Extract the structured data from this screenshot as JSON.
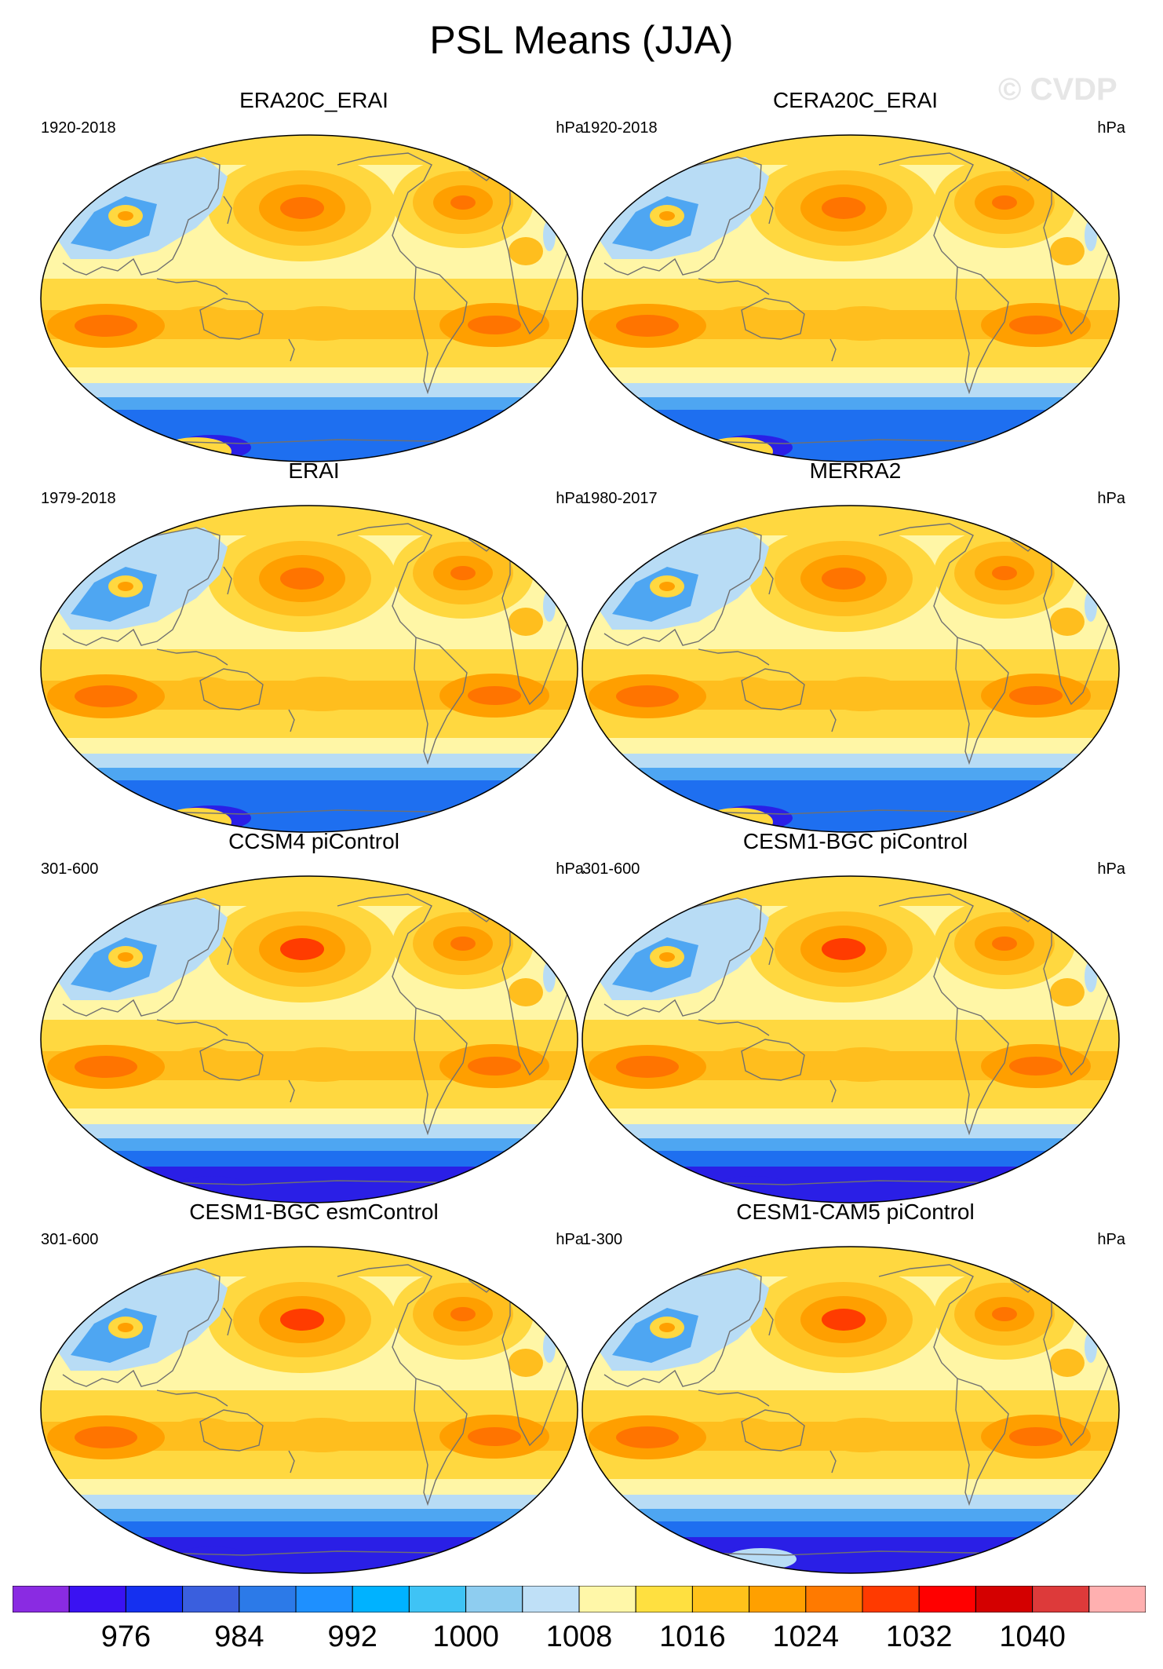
{
  "figure": {
    "title": "PSL Means (JJA)",
    "watermark": "© CVDP"
  },
  "panels": [
    {
      "title": "ERA20C_ERAI",
      "period": "1920-2018",
      "units": "hPa",
      "variant": 0
    },
    {
      "title": "CERA20C_ERAI",
      "period": "1920-2018",
      "units": "hPa",
      "variant": 0
    },
    {
      "title": "ERAI",
      "period": "1979-2018",
      "units": "hPa",
      "variant": 1
    },
    {
      "title": "MERRA2",
      "period": "1980-2017",
      "units": "hPa",
      "variant": 1
    },
    {
      "title": "CCSM4 piControl",
      "period": "301-600",
      "units": "hPa",
      "variant": 2
    },
    {
      "title": "CESM1-BGC piControl",
      "period": "301-600",
      "units": "hPa",
      "variant": 2
    },
    {
      "title": "CESM1-BGC esmControl",
      "period": "301-600",
      "units": "hPa",
      "variant": 2
    },
    {
      "title": "CESM1-CAM5 piControl",
      "period": "1-300",
      "units": "hPa",
      "variant": 3
    }
  ],
  "colorbar": {
    "colors": [
      "#8a2be2",
      "#3a12f2",
      "#1530f0",
      "#3a5fde",
      "#2c7ae8",
      "#1e90ff",
      "#00b2ff",
      "#3fc3f5",
      "#8ecdf0",
      "#bfe0f7",
      "#fff7a8",
      "#ffe040",
      "#ffc21a",
      "#ffa000",
      "#ff7a00",
      "#ff3a00",
      "#ff0000",
      "#d40000",
      "#dd3a3a",
      "#ffb0b0"
    ],
    "labels": [
      "976",
      "984",
      "992",
      "1000",
      "1008",
      "1016",
      "1024",
      "1032",
      "1040"
    ],
    "label_boundary_index": [
      2,
      4,
      6,
      8,
      10,
      12,
      14,
      16,
      18
    ]
  },
  "palette": {
    "background": "#ffffff",
    "coast": "#707070",
    "low_deep": "#2a1fe6",
    "low_mid": "#1e6ff0",
    "low_light": "#4ea6f2",
    "low_pale": "#b8dcf5",
    "neutral": "#fff6a6",
    "high_1": "#ffd840",
    "high_2": "#ffbe1e",
    "high_3": "#ff9f00",
    "high_4": "#ff7400",
    "high_5": "#ff3c00"
  }
}
